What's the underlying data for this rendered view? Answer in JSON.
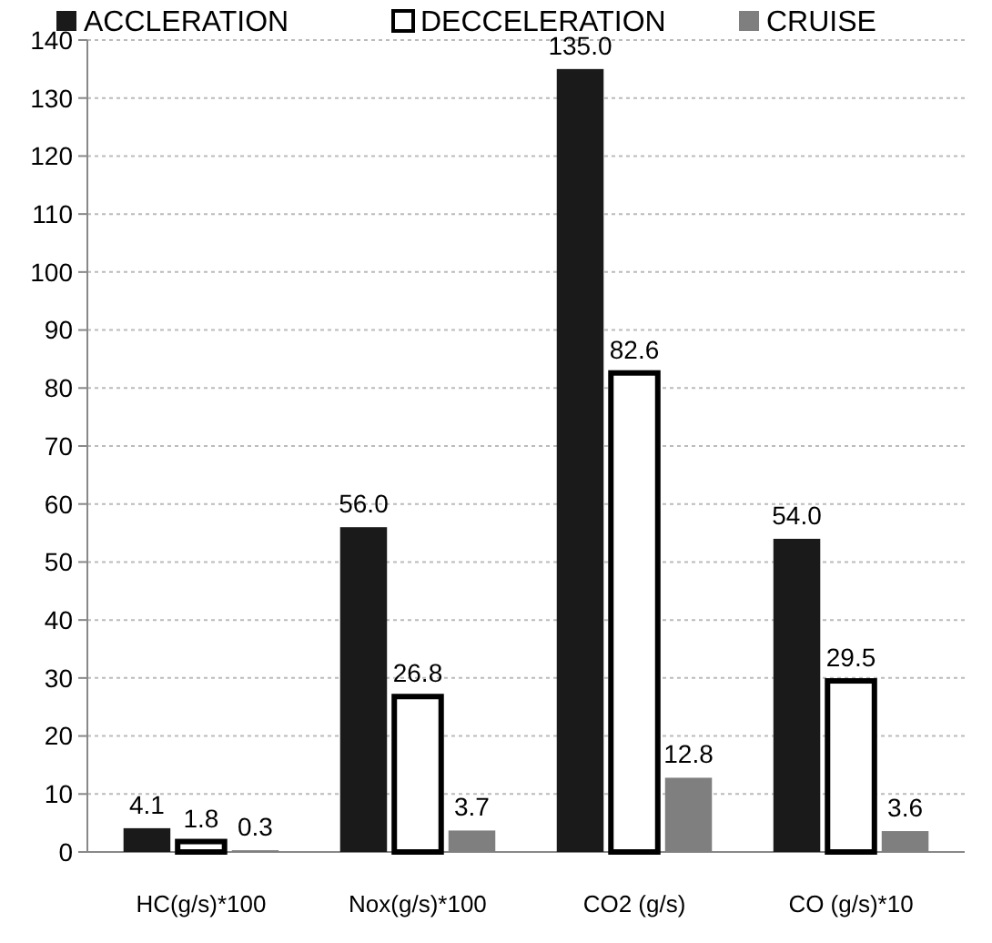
{
  "chart_data": {
    "type": "bar",
    "categories": [
      "HC(g/s)*100",
      "Nox(g/s)*100",
      "CO2 (g/s)",
      "CO (g/s)*10"
    ],
    "series": [
      {
        "name": "ACCLERATION",
        "color": "#1a1a1a",
        "values": [
          4.1,
          56.0,
          135.0,
          54.0
        ],
        "value_labels": [
          "4.1",
          "56.0",
          "135.0",
          "54.0"
        ]
      },
      {
        "name": "DECCELERATION",
        "color": "#ffffff",
        "values": [
          1.8,
          26.8,
          82.6,
          29.5
        ],
        "value_labels": [
          "1.8",
          "26.8",
          "82.6",
          "29.5"
        ]
      },
      {
        "name": "CRUISE",
        "color": "#7f7f7f",
        "values": [
          0.3,
          3.7,
          12.8,
          3.6
        ],
        "value_labels": [
          "0.3",
          "3.7",
          "12.8",
          "3.6"
        ]
      }
    ],
    "ylim": [
      0,
      140
    ],
    "yticks": [
      0,
      10,
      20,
      30,
      40,
      50,
      60,
      70,
      80,
      90,
      100,
      110,
      120,
      130,
      140
    ],
    "grid": "y",
    "legend": "top"
  }
}
